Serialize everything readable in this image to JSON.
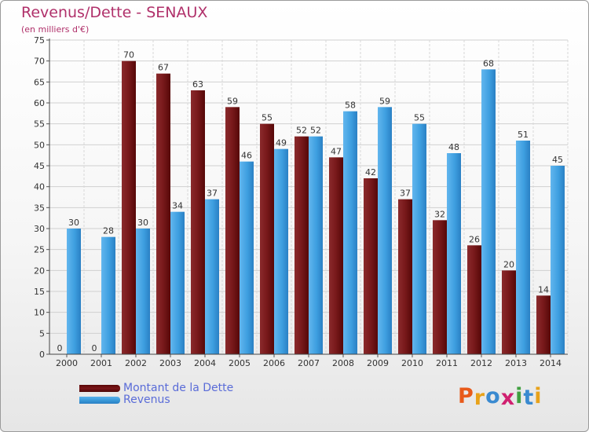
{
  "title": "Revenus/Dette - SENAUX",
  "subtitle": "(en milliers d'€)",
  "logo_text": "Proxiti",
  "colors": {
    "title": "#b0306a",
    "dette": "#7a1518",
    "revenus": "#3a9ad9",
    "legend_text": "#5a6cd8",
    "logo": [
      "#e85a1a",
      "#e8a21a",
      "#3a8ad0",
      "#d02070",
      "#40a040",
      "#3a8ad0",
      "#e8a21a"
    ]
  },
  "chart_data": {
    "type": "bar",
    "categories": [
      "2000",
      "2001",
      "2002",
      "2003",
      "2004",
      "2005",
      "2006",
      "2007",
      "2008",
      "2009",
      "2010",
      "2011",
      "2012",
      "2013",
      "2014"
    ],
    "series": [
      {
        "name": "Montant de la Dette",
        "values": [
          0,
          0,
          70,
          67,
          63,
          59,
          55,
          52,
          47,
          42,
          37,
          32,
          26,
          20,
          14
        ]
      },
      {
        "name": "Revenus",
        "values": [
          30,
          28,
          30,
          34,
          37,
          46,
          49,
          52,
          58,
          59,
          55,
          48,
          68,
          51,
          45
        ]
      }
    ],
    "yticks": [
      0,
      5,
      10,
      15,
      20,
      25,
      30,
      35,
      40,
      45,
      50,
      55,
      60,
      65,
      70,
      75
    ],
    "ylim": [
      0,
      75
    ],
    "grid": true,
    "legend_position": "bottom-left"
  }
}
